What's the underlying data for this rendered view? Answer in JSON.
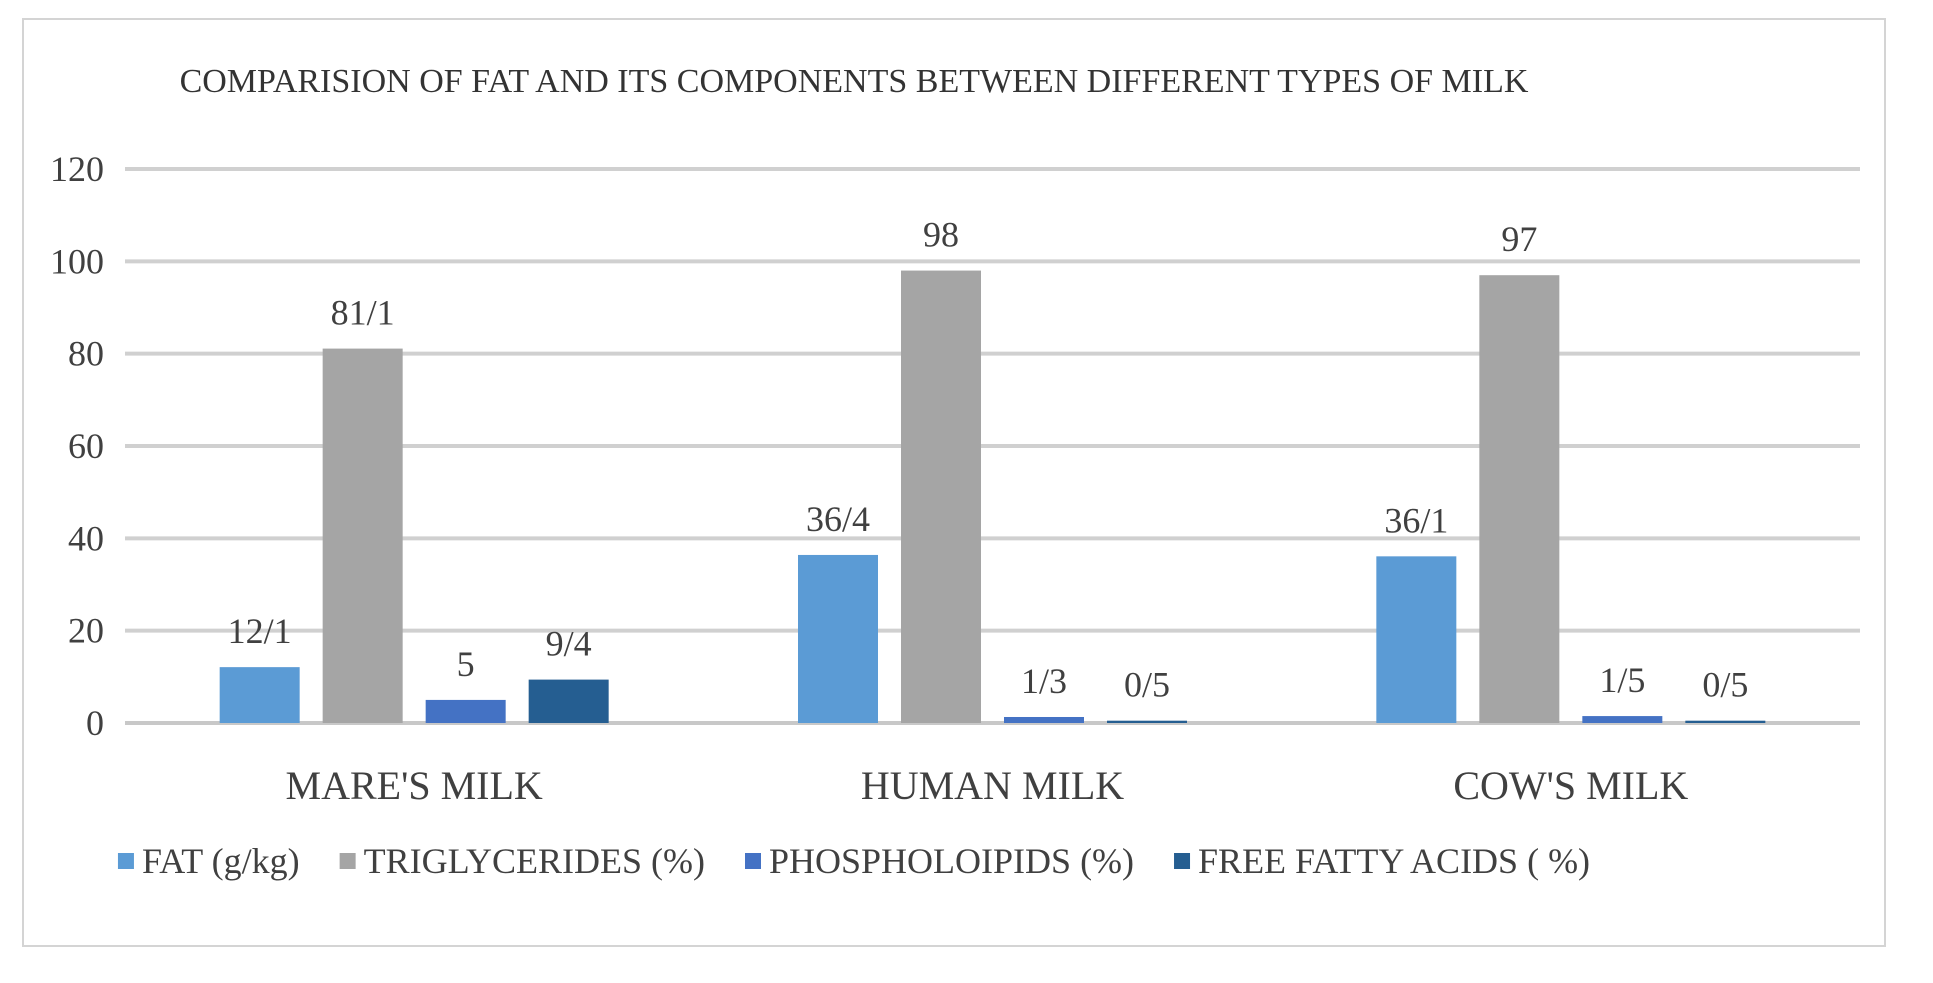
{
  "chart_data": {
    "type": "bar",
    "title": "COMPARISION OF FAT AND ITS COMPONENTS BETWEEN DIFFERENT TYPES OF MILK",
    "xlabel": "",
    "ylabel": "",
    "ylim": [
      0,
      120
    ],
    "y_ticks": [
      "0",
      "20",
      "40",
      "60",
      "80",
      "100",
      "120"
    ],
    "grid": true,
    "legend_position": "bottom",
    "categories": [
      "MARE'S MILK",
      "HUMAN MILK",
      "COW'S MILK"
    ],
    "series": [
      {
        "name": "FAT (g/kg)",
        "color": "#5b9bd5",
        "values": [
          12.1,
          36.4,
          36.1
        ],
        "labels": [
          "12/1",
          "36/4",
          "36/1"
        ]
      },
      {
        "name": "TRIGLYCERIDES (%)",
        "color": "#a5a5a5",
        "values": [
          81.1,
          98,
          97
        ],
        "labels": [
          "81/1",
          "98",
          "97"
        ]
      },
      {
        "name": "PHOSPHOLOIPIDS (%)",
        "color": "#4472c4",
        "values": [
          5,
          1.3,
          1.5
        ],
        "labels": [
          "5",
          "1/3",
          "1/5"
        ]
      },
      {
        "name": "FREE FATTY ACIDS ( %)",
        "color": "#255e91",
        "values": [
          9.4,
          0.5,
          0.5
        ],
        "labels": [
          "9/4",
          "0/5",
          "0/5"
        ]
      }
    ]
  }
}
